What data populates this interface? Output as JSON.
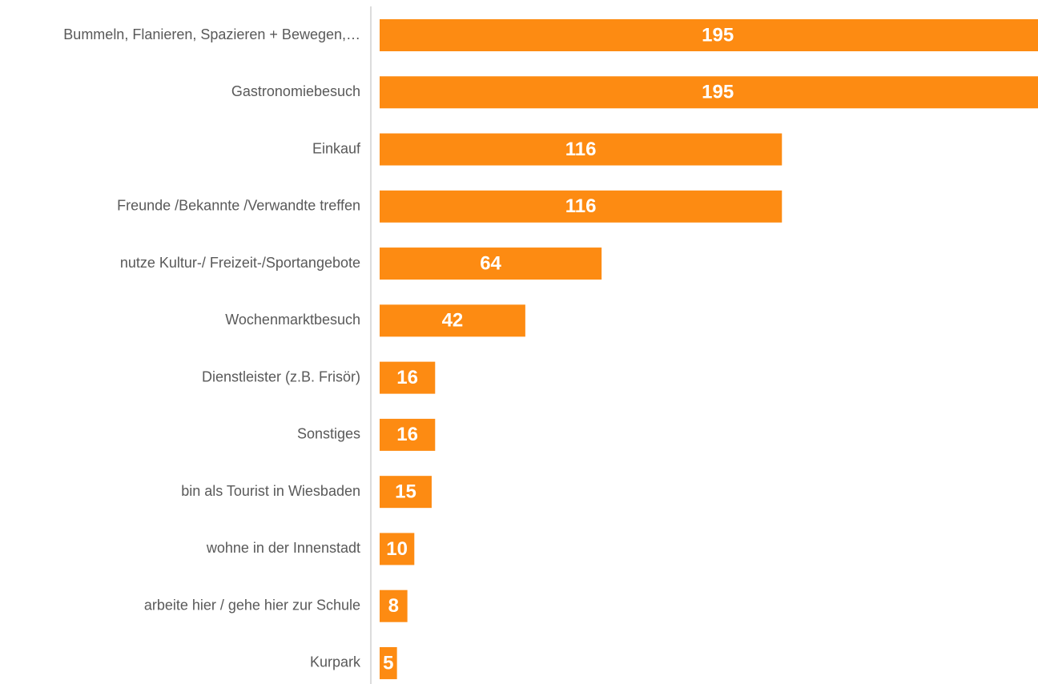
{
  "chart_data": {
    "type": "bar",
    "orientation": "horizontal",
    "categories": [
      "Bummeln, Flanieren, Spazieren + Bewegen,…",
      "Gastronomiebesuch",
      "Einkauf",
      "Freunde /Bekannte /Verwandte treffen",
      "nutze Kultur-/ Freizeit-/Sportangebote",
      "Wochenmarktbesuch",
      "Dienstleister (z.B. Frisör)",
      "Sonstiges",
      "bin als Tourist in Wiesbaden",
      "wohne in der Innenstadt",
      "arbeite hier / gehe hier zur Schule",
      "Kurpark"
    ],
    "values": [
      195,
      195,
      116,
      116,
      64,
      42,
      16,
      16,
      15,
      10,
      8,
      5
    ],
    "color": "#fd8b12"
  }
}
